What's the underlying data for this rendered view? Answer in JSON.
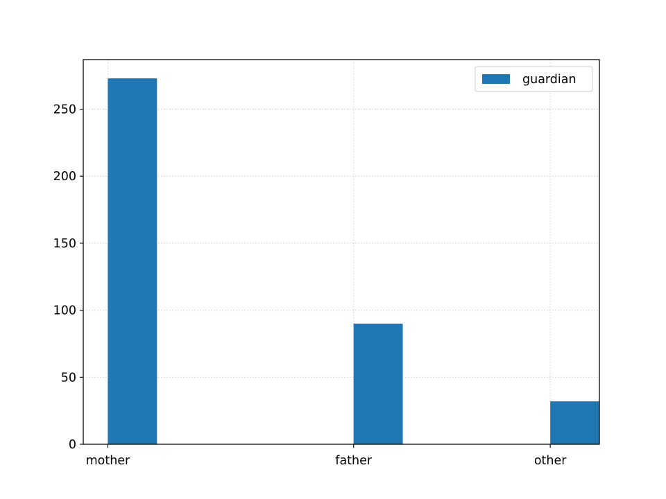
{
  "chart_data": {
    "type": "bar",
    "categories": [
      "mother",
      "father",
      "other"
    ],
    "series": [
      {
        "name": "guardian",
        "values": [
          273,
          90,
          32
        ],
        "color": "#1f77b4"
      }
    ],
    "x_positions": [
      0,
      1,
      1.8
    ],
    "xlim": [
      -0.1,
      2.0
    ],
    "ylim": [
      0,
      287
    ],
    "yticks": [
      0,
      50,
      100,
      150,
      200,
      250
    ],
    "grid": true,
    "legend_position": "top-right"
  }
}
